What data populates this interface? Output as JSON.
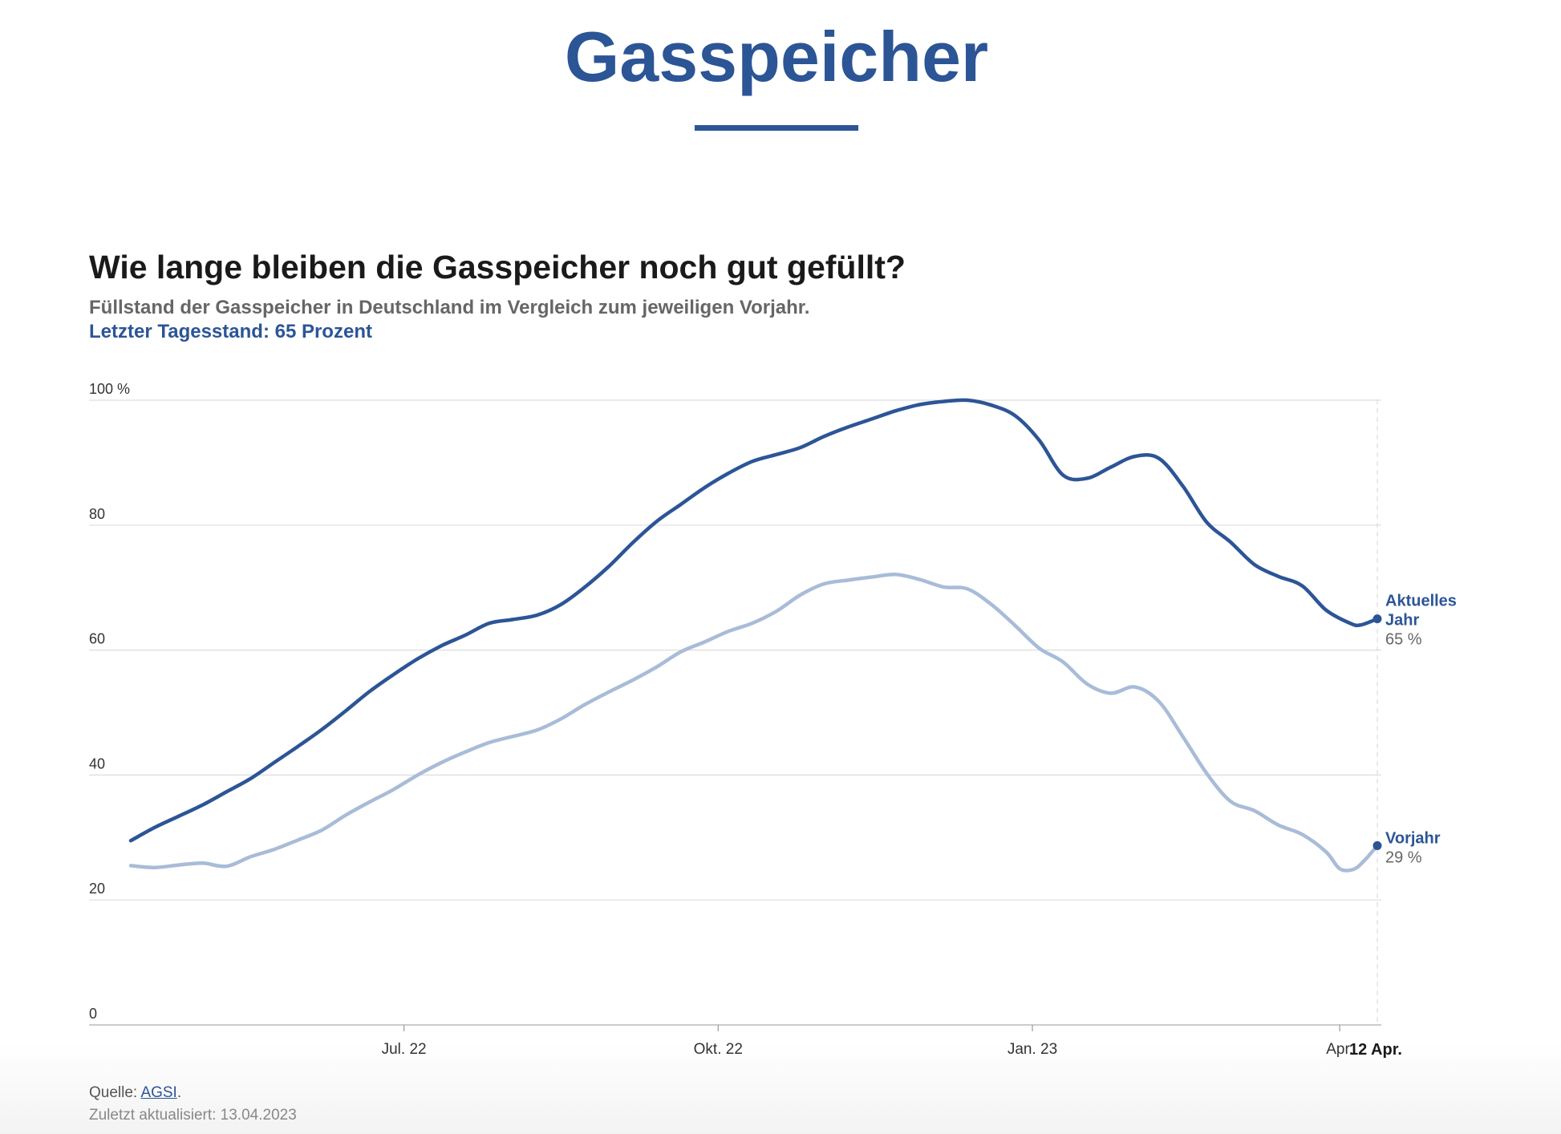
{
  "header": {
    "title": "Gasspeicher"
  },
  "chart_header": {
    "title": "Wie lange bleiben die Gasspeicher noch gut gefüllt?",
    "subtitle": "Füllstand der Gasspeicher in Deutschland im Vergleich zum jeweiligen Vorjahr.",
    "latest": "Letzter Tagesstand: 65 Prozent"
  },
  "footer": {
    "source_label": "Quelle:",
    "source_link": "AGSI",
    "source_end": ".",
    "updated": "Zuletzt aktualisiert: 13.04.2023"
  },
  "colors": {
    "current": "#2c5596",
    "previous": "#a8bcd8",
    "grid": "#dddddd",
    "axis_text": "#333333"
  },
  "chart_data": {
    "type": "line",
    "x_start": "2022-04-12",
    "x_end": "2023-04-12",
    "ylim": [
      0,
      100
    ],
    "y_ticks": [
      0,
      20,
      40,
      60,
      80,
      100
    ],
    "y_tick_labels": [
      "0",
      "20",
      "40",
      "60",
      "80",
      "100 %"
    ],
    "x_ticks": [
      {
        "date": "2022-07-01",
        "label": "Jul. 22"
      },
      {
        "date": "2022-10-01",
        "label": "Okt. 22"
      },
      {
        "date": "2023-01-01",
        "label": "Jan. 23"
      },
      {
        "date": "2023-04-01",
        "label": "Apr."
      }
    ],
    "end_label": "12 Apr.",
    "grid": true,
    "series": [
      {
        "name": "Aktuelles Jahr",
        "label_lines": [
          "Aktuelles",
          "Jahr"
        ],
        "end_value_label": "65 %",
        "points": [
          [
            "2022-04-12",
            29.5
          ],
          [
            "2022-04-19",
            31.6
          ],
          [
            "2022-04-26",
            33.4
          ],
          [
            "2022-05-03",
            35.2
          ],
          [
            "2022-05-10",
            37.3
          ],
          [
            "2022-05-17",
            39.4
          ],
          [
            "2022-05-24",
            42.0
          ],
          [
            "2022-05-31",
            44.6
          ],
          [
            "2022-06-07",
            47.3
          ],
          [
            "2022-06-14",
            50.3
          ],
          [
            "2022-06-21",
            53.4
          ],
          [
            "2022-06-28",
            56.1
          ],
          [
            "2022-07-05",
            58.6
          ],
          [
            "2022-07-12",
            60.7
          ],
          [
            "2022-07-19",
            62.4
          ],
          [
            "2022-07-26",
            64.3
          ],
          [
            "2022-08-02",
            64.9
          ],
          [
            "2022-08-09",
            65.6
          ],
          [
            "2022-08-16",
            67.3
          ],
          [
            "2022-08-23",
            70.1
          ],
          [
            "2022-08-30",
            73.4
          ],
          [
            "2022-09-06",
            77.2
          ],
          [
            "2022-09-13",
            80.6
          ],
          [
            "2022-09-20",
            83.3
          ],
          [
            "2022-09-27",
            86.0
          ],
          [
            "2022-10-04",
            88.3
          ],
          [
            "2022-10-11",
            90.2
          ],
          [
            "2022-10-18",
            91.3
          ],
          [
            "2022-10-25",
            92.4
          ],
          [
            "2022-11-01",
            94.2
          ],
          [
            "2022-11-08",
            95.7
          ],
          [
            "2022-11-15",
            97.0
          ],
          [
            "2022-11-22",
            98.3
          ],
          [
            "2022-11-29",
            99.3
          ],
          [
            "2022-12-06",
            99.8
          ],
          [
            "2022-12-13",
            100.0
          ],
          [
            "2022-12-20",
            99.2
          ],
          [
            "2022-12-27",
            97.5
          ],
          [
            "2023-01-03",
            93.6
          ],
          [
            "2023-01-10",
            88.0
          ],
          [
            "2023-01-17",
            87.5
          ],
          [
            "2023-01-24",
            89.3
          ],
          [
            "2023-01-31",
            91.0
          ],
          [
            "2023-02-07",
            90.7
          ],
          [
            "2023-02-14",
            86.3
          ],
          [
            "2023-02-21",
            80.5
          ],
          [
            "2023-02-28",
            77.3
          ],
          [
            "2023-03-07",
            73.7
          ],
          [
            "2023-03-14",
            71.8
          ],
          [
            "2023-03-21",
            70.3
          ],
          [
            "2023-03-28",
            66.4
          ],
          [
            "2023-04-04",
            64.3
          ],
          [
            "2023-04-07",
            64.0
          ],
          [
            "2023-04-12",
            65.0
          ]
        ]
      },
      {
        "name": "Vorjahr",
        "label_lines": [
          "Vorjahr"
        ],
        "end_value_label": "29 %",
        "points": [
          [
            "2022-04-12",
            25.5
          ],
          [
            "2022-04-19",
            25.2
          ],
          [
            "2022-04-26",
            25.6
          ],
          [
            "2022-05-03",
            25.9
          ],
          [
            "2022-05-10",
            25.4
          ],
          [
            "2022-05-17",
            26.9
          ],
          [
            "2022-05-24",
            28.1
          ],
          [
            "2022-05-31",
            29.6
          ],
          [
            "2022-06-07",
            31.2
          ],
          [
            "2022-06-14",
            33.6
          ],
          [
            "2022-06-21",
            35.7
          ],
          [
            "2022-06-28",
            37.7
          ],
          [
            "2022-07-05",
            40.0
          ],
          [
            "2022-07-12",
            42.0
          ],
          [
            "2022-07-19",
            43.7
          ],
          [
            "2022-07-26",
            45.2
          ],
          [
            "2022-08-02",
            46.2
          ],
          [
            "2022-08-09",
            47.2
          ],
          [
            "2022-08-16",
            49.0
          ],
          [
            "2022-08-23",
            51.3
          ],
          [
            "2022-08-30",
            53.3
          ],
          [
            "2022-09-06",
            55.2
          ],
          [
            "2022-09-13",
            57.3
          ],
          [
            "2022-09-20",
            59.7
          ],
          [
            "2022-09-27",
            61.3
          ],
          [
            "2022-10-04",
            63.0
          ],
          [
            "2022-10-11",
            64.3
          ],
          [
            "2022-10-18",
            66.2
          ],
          [
            "2022-10-25",
            68.8
          ],
          [
            "2022-11-01",
            70.6
          ],
          [
            "2022-11-08",
            71.2
          ],
          [
            "2022-11-15",
            71.7
          ],
          [
            "2022-11-22",
            72.1
          ],
          [
            "2022-11-29",
            71.3
          ],
          [
            "2022-12-06",
            70.1
          ],
          [
            "2022-12-13",
            69.8
          ],
          [
            "2022-12-20",
            67.3
          ],
          [
            "2022-12-27",
            63.9
          ],
          [
            "2023-01-03",
            60.3
          ],
          [
            "2023-01-10",
            58.1
          ],
          [
            "2023-01-17",
            54.6
          ],
          [
            "2023-01-24",
            53.1
          ],
          [
            "2023-01-31",
            54.1
          ],
          [
            "2023-02-07",
            51.8
          ],
          [
            "2023-02-14",
            46.2
          ],
          [
            "2023-02-21",
            40.3
          ],
          [
            "2023-02-28",
            35.8
          ],
          [
            "2023-03-07",
            34.3
          ],
          [
            "2023-03-14",
            32.0
          ],
          [
            "2023-03-21",
            30.5
          ],
          [
            "2023-03-28",
            27.7
          ],
          [
            "2023-04-01",
            25.0
          ],
          [
            "2023-04-05",
            24.9
          ],
          [
            "2023-04-08",
            26.2
          ],
          [
            "2023-04-12",
            28.7
          ]
        ]
      }
    ]
  }
}
